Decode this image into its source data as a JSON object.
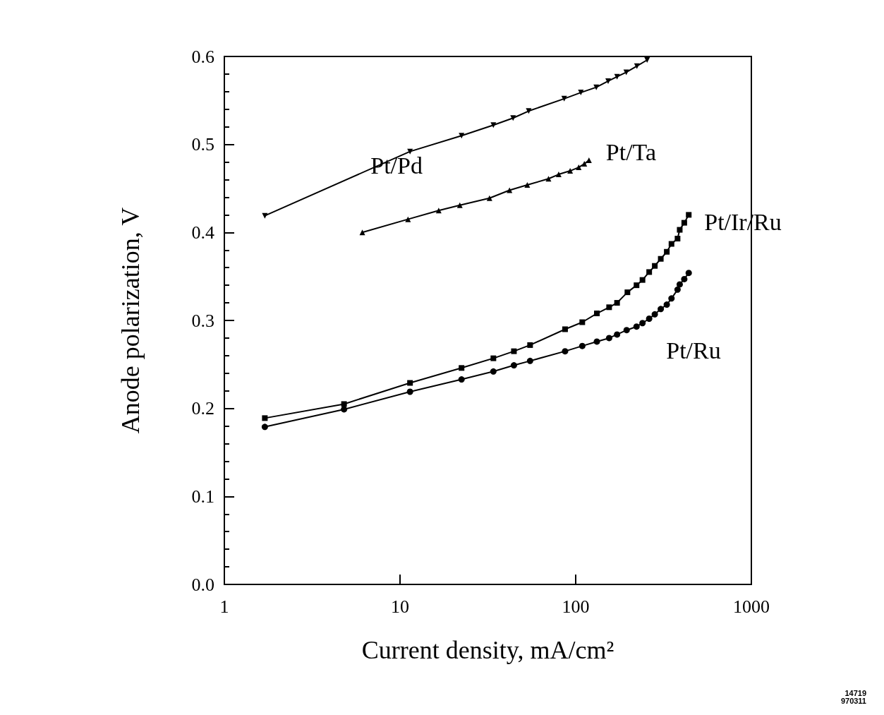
{
  "chart_data": {
    "type": "line",
    "xlabel": "Current density, mA/cm²",
    "ylabel": "Anode polarization, V",
    "log": "x",
    "xlim": [
      1,
      1000
    ],
    "xticks": [
      1,
      10,
      100,
      1000
    ],
    "ylim": [
      0,
      0.6
    ],
    "yticks": [
      {
        "value": 0,
        "label": "0.0"
      },
      0.1,
      0.2,
      0.3,
      0.4,
      0.5,
      0.6
    ],
    "grid": false,
    "legend": false,
    "line_style": "solid",
    "annotations": [
      "14719\n970311"
    ],
    "series": [
      {
        "name": "Pt/Pd",
        "color": "#000000",
        "marker": "triangle-down",
        "x": [
          1.7,
          11.4,
          22.4,
          34,
          44,
          54,
          86,
          107,
          131,
          153,
          172,
          194,
          223,
          255
        ],
        "values": [
          0.419,
          0.492,
          0.51,
          0.522,
          0.53,
          0.538,
          0.552,
          0.559,
          0.565,
          0.572,
          0.577,
          0.582,
          0.589,
          0.596
        ]
      },
      {
        "name": "Pt/Ta",
        "color": "#000000",
        "marker": "triangle",
        "x": [
          6.1,
          11.1,
          16.6,
          21.9,
          32.3,
          42,
          53,
          70,
          80,
          93,
          104,
          112,
          119
        ],
        "values": [
          0.4,
          0.415,
          0.425,
          0.431,
          0.439,
          0.448,
          0.454,
          0.461,
          0.466,
          0.47,
          0.474,
          0.478,
          0.482
        ]
      },
      {
        "name": "Pt/Ir/Ru",
        "color": "#000000",
        "marker": "square",
        "x": [
          1.7,
          4.8,
          11.4,
          22.4,
          34,
          44.5,
          55,
          87,
          109,
          132,
          155,
          172,
          197,
          222,
          240,
          262,
          282,
          305,
          330,
          351,
          380,
          391,
          415,
          440
        ],
        "values": [
          0.189,
          0.205,
          0.229,
          0.246,
          0.257,
          0.265,
          0.272,
          0.29,
          0.298,
          0.308,
          0.315,
          0.32,
          0.332,
          0.34,
          0.346,
          0.355,
          0.362,
          0.37,
          0.378,
          0.387,
          0.393,
          0.403,
          0.411,
          0.42
        ]
      },
      {
        "name": "Pt/Ru",
        "color": "#000000",
        "marker": "circle",
        "x": [
          1.7,
          4.8,
          11.4,
          22.4,
          34,
          44.5,
          55,
          87,
          109,
          132,
          155,
          172,
          195,
          222,
          240,
          262,
          282,
          305,
          330,
          351,
          380,
          391,
          415,
          440
        ],
        "values": [
          0.179,
          0.199,
          0.219,
          0.233,
          0.242,
          0.249,
          0.254,
          0.265,
          0.271,
          0.276,
          0.28,
          0.284,
          0.289,
          0.293,
          0.297,
          0.302,
          0.307,
          0.313,
          0.318,
          0.325,
          0.335,
          0.341,
          0.347,
          0.354
        ]
      }
    ]
  }
}
